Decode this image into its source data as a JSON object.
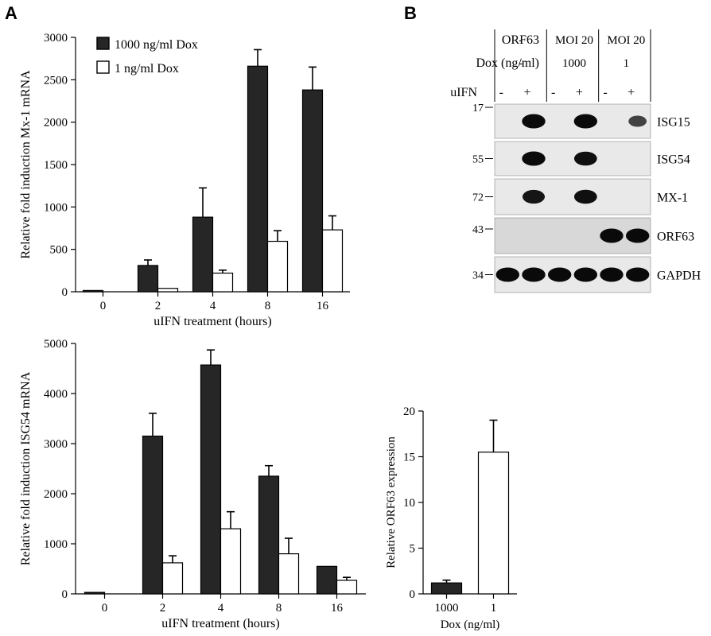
{
  "panel_labels": {
    "a": "A",
    "b": "B"
  },
  "colors": {
    "dark": "#262626",
    "light": "#ffffff",
    "stroke": "#000000"
  },
  "chart_data": [
    {
      "id": "mx1",
      "type": "bar",
      "xlabel": "uIFN treatment (hours)",
      "ylabel": "Relative fold induction Mx-1 mRNA",
      "ylim": [
        0,
        3000
      ],
      "yticks": [
        0,
        500,
        1000,
        1500,
        2000,
        2500,
        3000
      ],
      "categories": [
        "0",
        "2",
        "4",
        "8",
        "16"
      ],
      "legend_position": "top-left",
      "series": [
        {
          "name": "1000 ng/ml Dox",
          "color": "#262626",
          "values": [
            15,
            310,
            880,
            2660,
            2380
          ],
          "errors": [
            0,
            65,
            345,
            195,
            270
          ]
        },
        {
          "name": "1 ng/ml Dox",
          "color": "#ffffff",
          "values": [
            0,
            40,
            220,
            595,
            730
          ],
          "errors": [
            0,
            0,
            35,
            125,
            165
          ]
        }
      ]
    },
    {
      "id": "isg54",
      "type": "bar",
      "xlabel": "uIFN treatment (hours)",
      "ylabel": "Relative fold induction ISG54 mRNA",
      "ylim": [
        0,
        5000
      ],
      "yticks": [
        0,
        1000,
        2000,
        3000,
        4000,
        5000
      ],
      "categories": [
        "0",
        "2",
        "4",
        "8",
        "16"
      ],
      "series": [
        {
          "name": "1000 ng/ml Dox",
          "color": "#262626",
          "values": [
            30,
            3150,
            4570,
            2350,
            550
          ],
          "errors": [
            0,
            455,
            300,
            210,
            0
          ]
        },
        {
          "name": "1 ng/ml Dox",
          "color": "#ffffff",
          "values": [
            0,
            620,
            1300,
            800,
            270
          ],
          "errors": [
            0,
            140,
            340,
            310,
            60
          ]
        }
      ]
    },
    {
      "id": "orf63",
      "type": "bar",
      "xlabel": "Dox (ng/ml)",
      "ylabel": "Relative ORF63 expression",
      "ylim": [
        0,
        20
      ],
      "yticks": [
        0,
        5,
        10,
        15,
        20
      ],
      "categories": [
        "1000",
        "1"
      ],
      "values": [
        1.2,
        15.5
      ],
      "errors": [
        0.3,
        3.5
      ],
      "colors": [
        "#262626",
        "#ffffff"
      ]
    }
  ],
  "blot": {
    "header_rows": [
      {
        "label": "ORF63",
        "groups": [
          "-",
          "MOI 20",
          "MOI 20"
        ]
      },
      {
        "label": "Dox (ng/ml)",
        "groups": [
          "-",
          "1000",
          "1"
        ]
      }
    ],
    "uifn_label": "uIFN",
    "uifn_lanes": [
      "-",
      "+",
      "-",
      "+",
      "-",
      "+"
    ],
    "bands": [
      {
        "name": "ISG15",
        "mw": "17",
        "intensity": [
          0,
          1,
          0,
          1,
          0,
          0.5
        ]
      },
      {
        "name": "ISG54",
        "mw": "55",
        "intensity": [
          0,
          1,
          0,
          0.95,
          0,
          0
        ]
      },
      {
        "name": "MX-1",
        "mw": "72",
        "intensity": [
          0,
          0.9,
          0,
          0.95,
          0,
          0
        ]
      },
      {
        "name": "ORF63",
        "mw": "43",
        "intensity": [
          0,
          0,
          0,
          0,
          1,
          1
        ]
      },
      {
        "name": "GAPDH",
        "mw": "34",
        "intensity": [
          1,
          1,
          1,
          1,
          1,
          1
        ]
      }
    ]
  }
}
